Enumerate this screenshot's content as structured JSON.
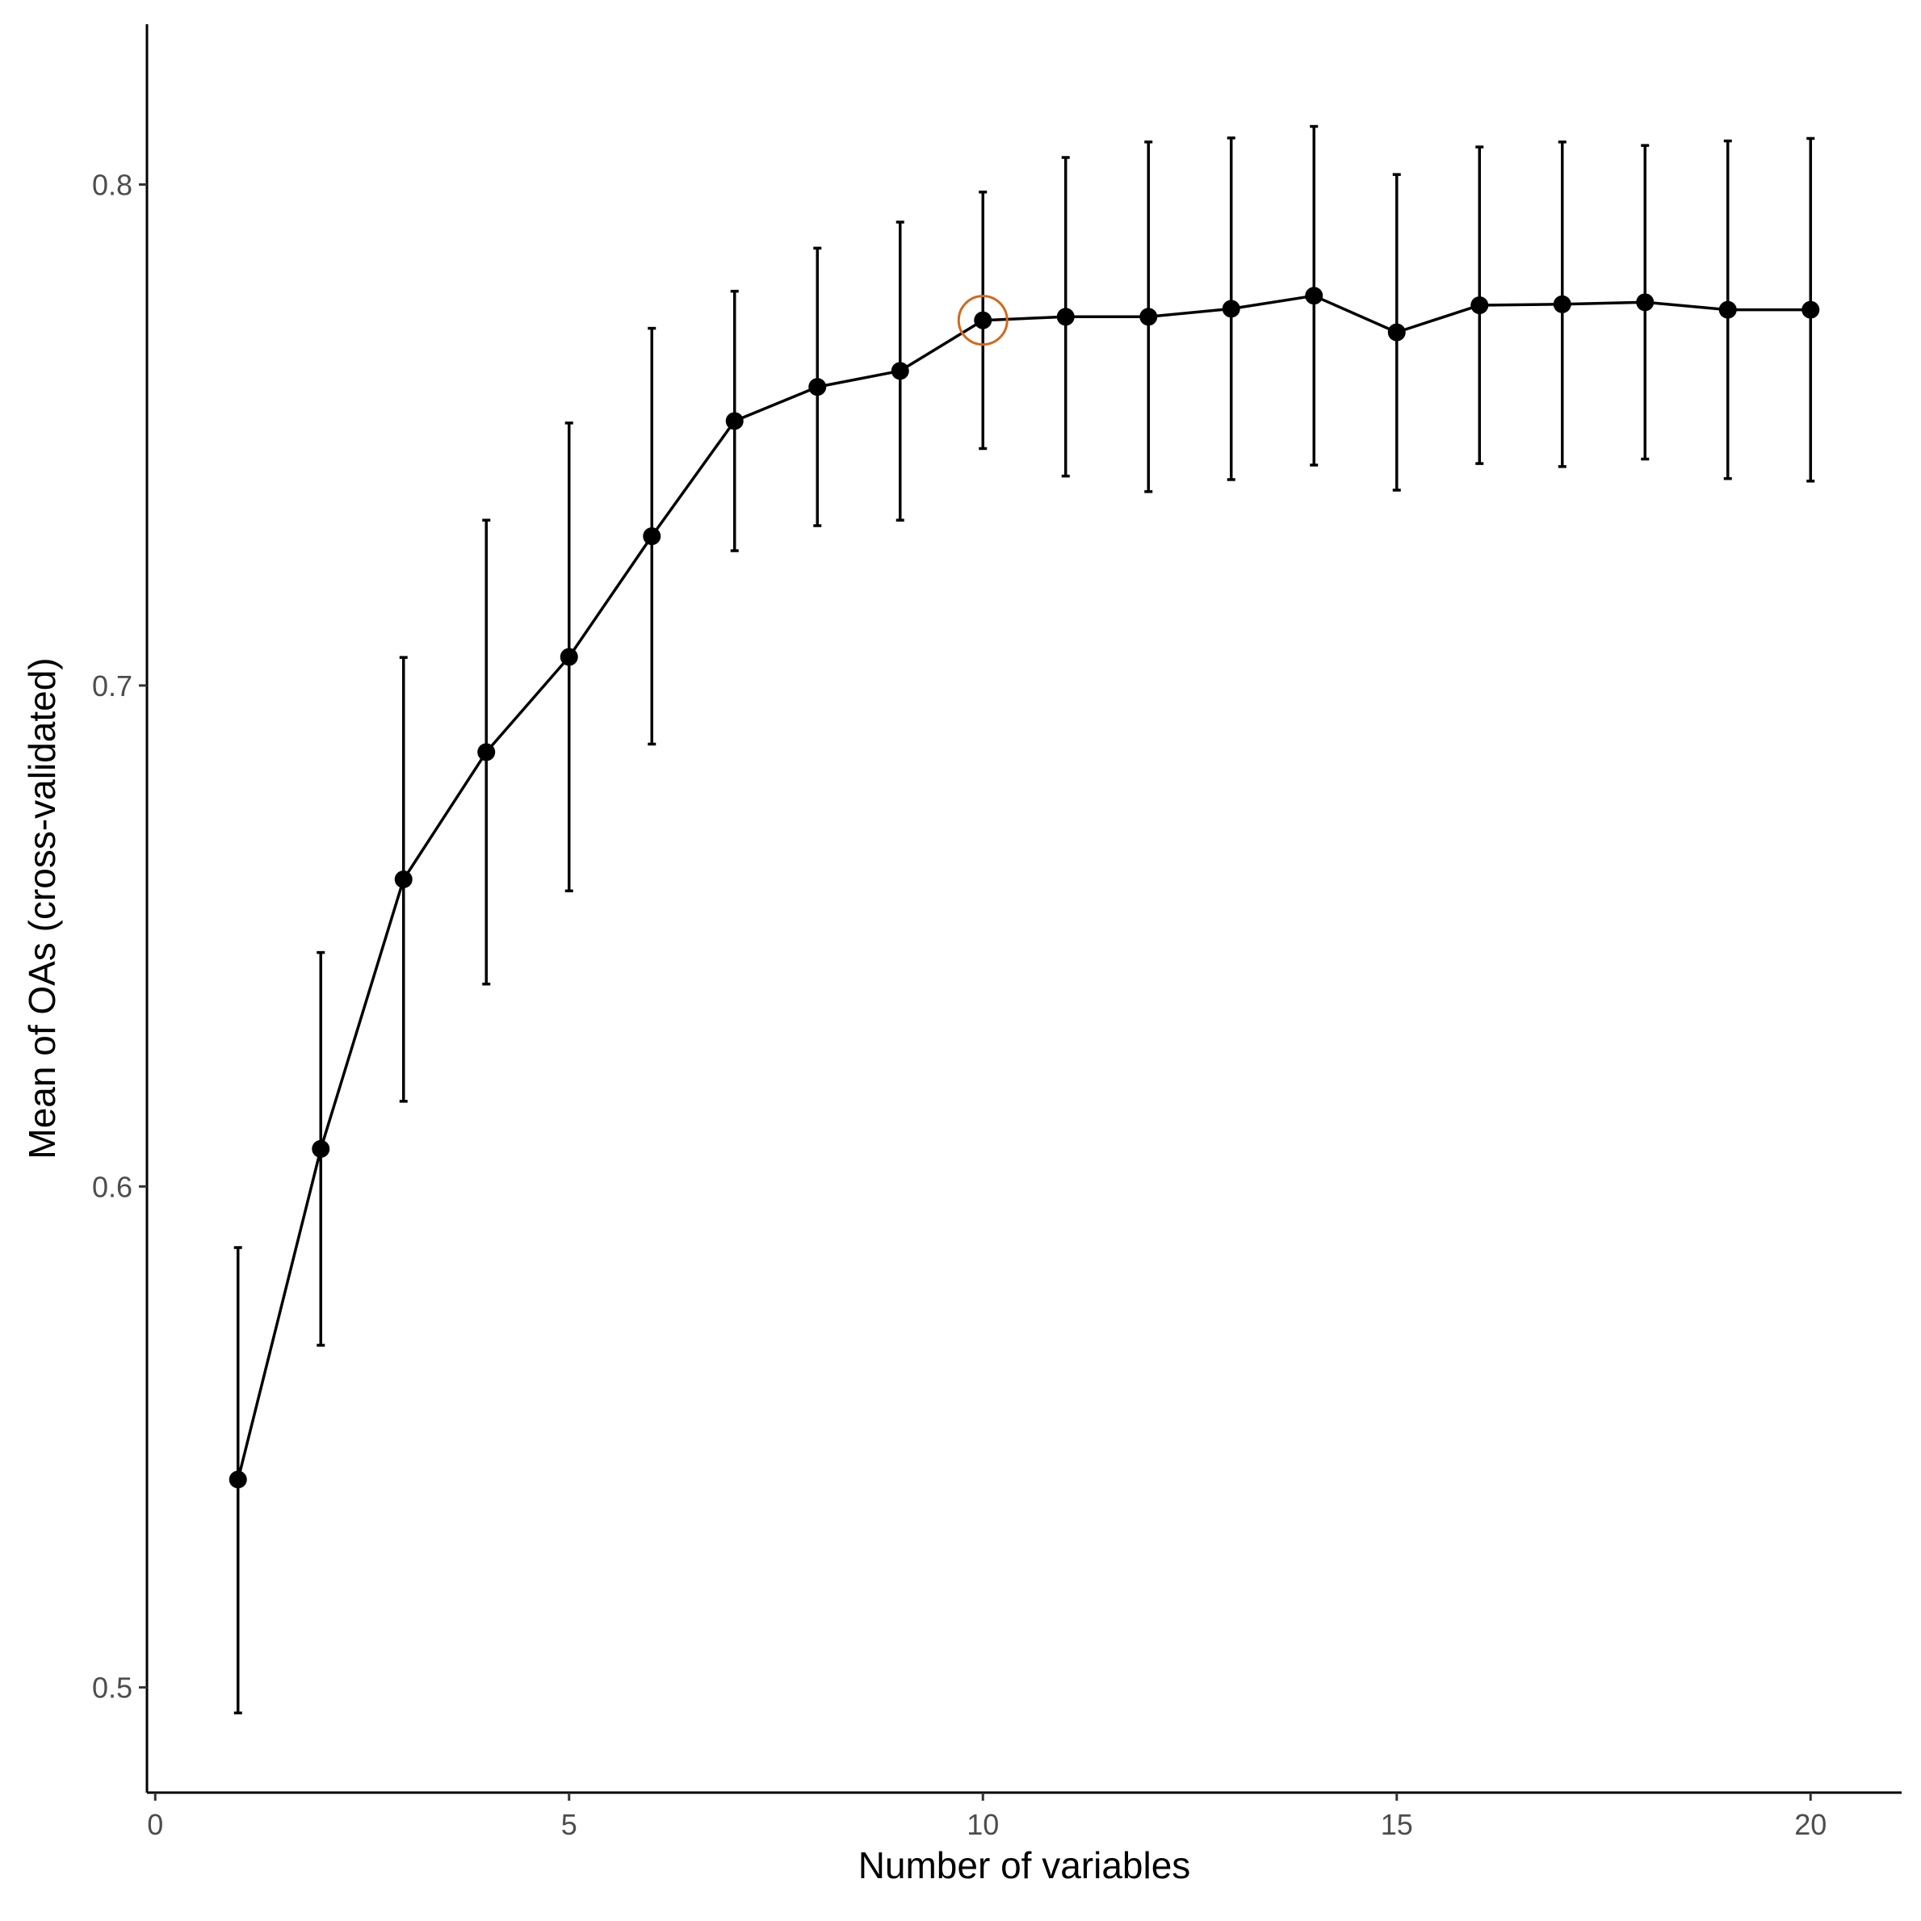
{
  "chart_data": {
    "type": "line",
    "title": "",
    "xlabel": "Number of variables",
    "ylabel": "Mean of OAs (cross-validated)",
    "xlim": [
      -0.1,
      21.1
    ],
    "ylim": [
      0.479,
      0.832
    ],
    "xticks": [
      0,
      5,
      10,
      15,
      20
    ],
    "xtick_labels": [
      "0",
      "5",
      "10",
      "15",
      "20"
    ],
    "yticks": [
      0.5,
      0.6,
      0.7,
      0.8
    ],
    "ytick_labels": [
      "0.5",
      "0.6",
      "0.7",
      "0.8"
    ],
    "grid": false,
    "legend": "none",
    "series": [
      {
        "x": [
          1,
          2,
          3,
          4,
          5,
          6,
          7,
          8,
          9,
          10,
          11,
          12,
          13,
          14,
          15,
          16,
          17,
          18,
          19,
          20
        ],
        "y": [
          0.5415,
          0.6075,
          0.6613,
          0.6867,
          0.7057,
          0.7298,
          0.7528,
          0.7596,
          0.7628,
          0.7729,
          0.7736,
          0.7736,
          0.7752,
          0.7778,
          0.7705,
          0.7759,
          0.7761,
          0.7765,
          0.775,
          0.775
        ],
        "error_lower": [
          0.4949,
          0.5683,
          0.617,
          0.6404,
          0.659,
          0.6883,
          0.7269,
          0.7319,
          0.733,
          0.7473,
          0.7418,
          0.7387,
          0.7411,
          0.744,
          0.739,
          0.7443,
          0.7437,
          0.7452,
          0.7413,
          0.7408
        ],
        "error_upper": [
          0.5878,
          0.6467,
          0.7056,
          0.733,
          0.7524,
          0.7713,
          0.7787,
          0.7873,
          0.7925,
          0.7985,
          0.8054,
          0.8085,
          0.8093,
          0.8116,
          0.802,
          0.8075,
          0.8085,
          0.8078,
          0.8087,
          0.8092
        ]
      }
    ],
    "highlight": {
      "x": 10,
      "marker": "circle",
      "color": "#d2691e"
    },
    "colors": {
      "line": "#000000",
      "point": "#000000",
      "axis": "#000000",
      "tick_text": "#4d4d4d",
      "highlight": "#d2691e"
    }
  }
}
